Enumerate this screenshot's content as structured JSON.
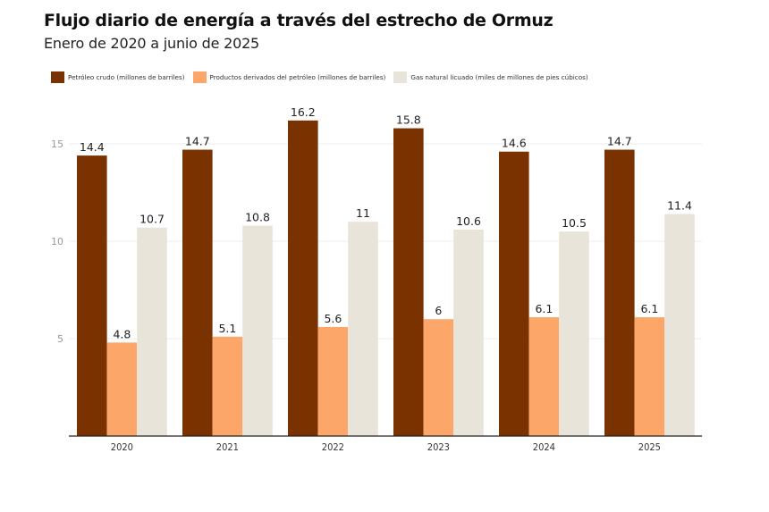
{
  "chart_data": {
    "type": "bar",
    "title": "Flujo diario de energía a través del estrecho de Ormuz",
    "subtitle": "Enero de 2020 a junio de 2025",
    "xlabel": "",
    "ylabel": "",
    "categories": [
      "2020",
      "2021",
      "2022",
      "2023",
      "2024",
      "2025"
    ],
    "series": [
      {
        "name": "Petróleo crudo (millones de barriles)",
        "color": "#7a3300",
        "values": [
          14.4,
          14.7,
          16.2,
          15.8,
          14.6,
          14.7
        ],
        "labels": [
          "14.4",
          "14.7",
          "16.2",
          "15.8",
          "14.6",
          "14.7"
        ]
      },
      {
        "name": "Productos derivados del petróleo (millones de barriles)",
        "color": "#fda66a",
        "values": [
          4.8,
          5.1,
          5.6,
          6,
          6.1,
          6.1
        ],
        "labels": [
          "4.8",
          "5.1",
          "5.6",
          "6",
          "6.1",
          "6.1"
        ]
      },
      {
        "name": "Gas natural licuado (miles de millones de pies cúbicos)",
        "color": "#e9e4da",
        "values": [
          10.7,
          10.8,
          11,
          10.6,
          10.5,
          11.4
        ],
        "labels": [
          "10.7",
          "10.8",
          "11",
          "10.6",
          "10.5",
          "11.4"
        ]
      }
    ],
    "yticks": [
      5,
      10,
      15
    ],
    "ytick_labels": [
      "5",
      "10",
      "15"
    ],
    "ylim": [
      0,
      16.2
    ],
    "grid": true,
    "legend_position": "top-left"
  }
}
